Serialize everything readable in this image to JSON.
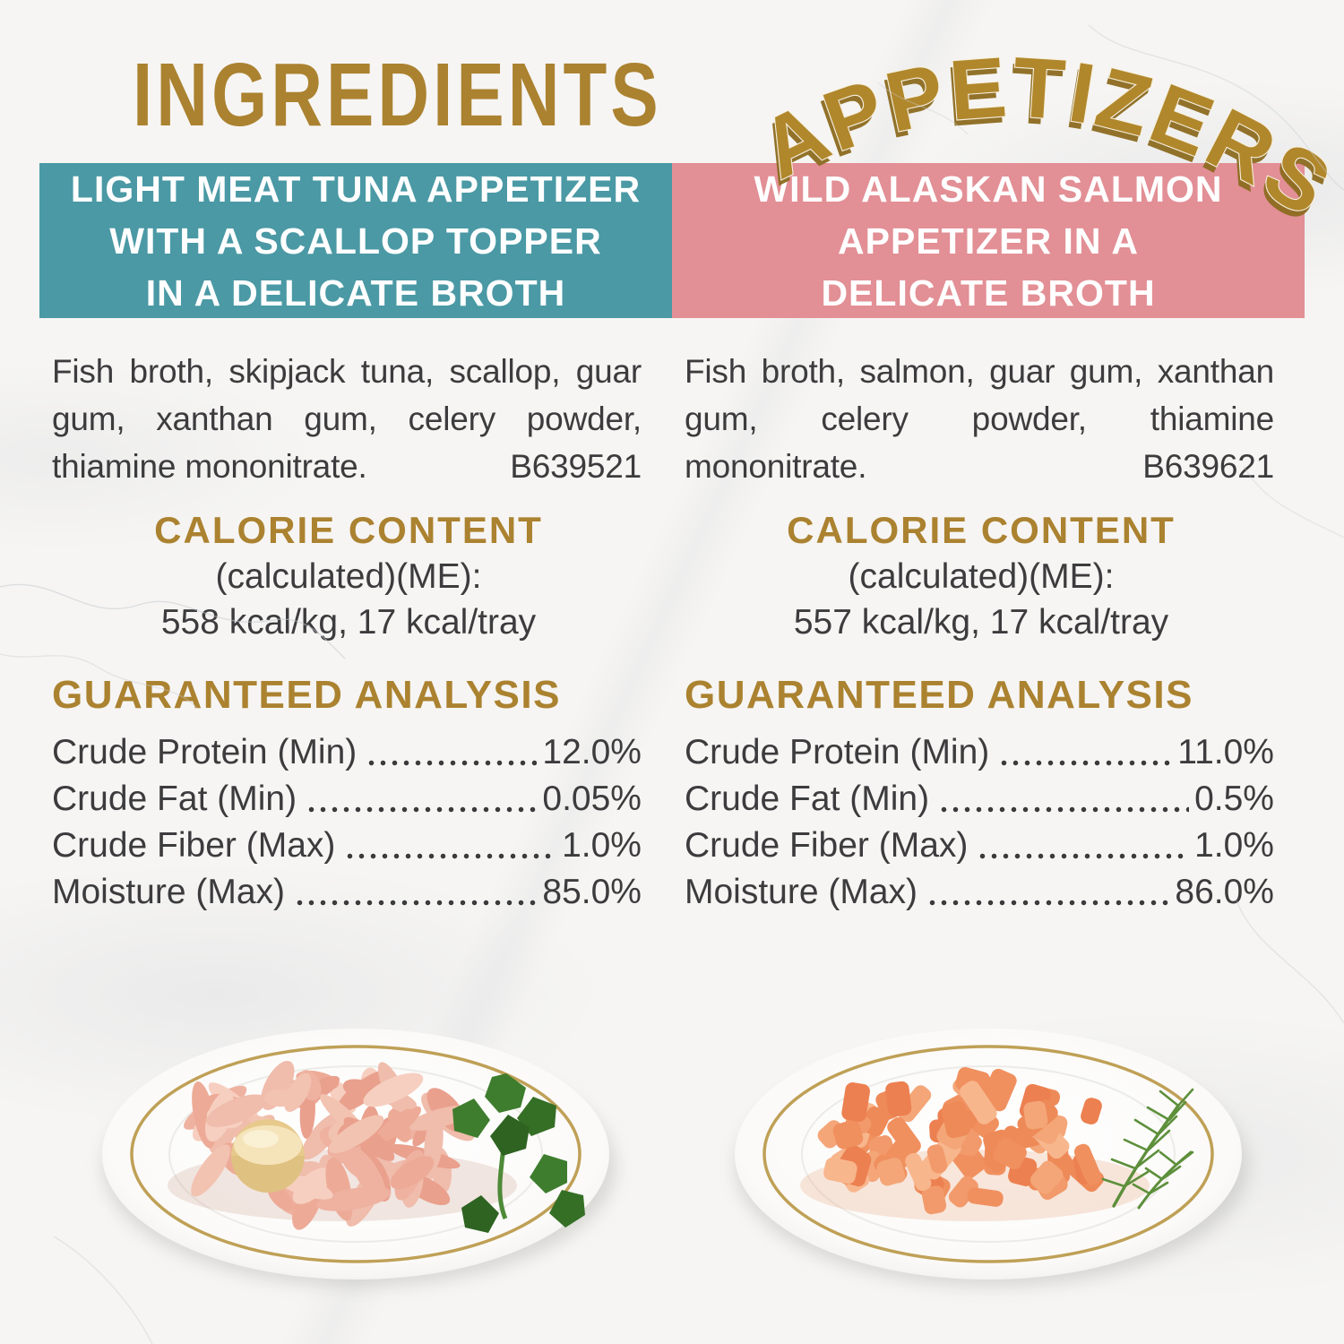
{
  "page": {
    "title": "INGREDIENTS",
    "script_title": "APPETIZERS"
  },
  "colors": {
    "gold": "#ab8230",
    "teal_header": "#4a99a5",
    "pink_header": "#e28f95",
    "body_text": "#3c3c3e",
    "plate_rim_gold": "#bfa056",
    "tuna_meat": "#efb2a1",
    "salmon_meat": "#f0905f",
    "scallop": "#eed8a6",
    "parsley_green": "#3e7d2e",
    "dill_green": "#5d8f3b"
  },
  "products": [
    {
      "header": {
        "lines": [
          "LIGHT MEAT TUNA APPETIZER",
          "WITH A SCALLOP TOPPER",
          "IN A DELICATE BROTH"
        ]
      },
      "ingredients": {
        "lines": [
          "Fish broth, skipjack tuna, scallop, guar",
          "gum, xanthan gum, celery powder,"
        ],
        "last_line": "thiamine mononitrate.",
        "batch_code": "B639521"
      },
      "calorie": {
        "heading": "CALORIE CONTENT",
        "line1": "(calculated)(ME):",
        "line2": "558 kcal/kg, 17 kcal/tray"
      },
      "analysis": {
        "heading": "GUARANTEED ANALYSIS",
        "rows": [
          {
            "label": "Crude Protein (Min)",
            "value": "12.0%"
          },
          {
            "label": "Crude Fat (Min)",
            "value": "0.05%"
          },
          {
            "label": "Crude Fiber (Max)",
            "value": "1.0%"
          },
          {
            "label": "Moisture (Max)",
            "value": "85.0%"
          }
        ]
      }
    },
    {
      "header": {
        "lines": [
          "WILD ALASKAN SALMON",
          "APPETIZER IN A",
          "DELICATE BROTH"
        ]
      },
      "ingredients": {
        "lines": [
          "Fish broth, salmon, guar gum, xanthan",
          "gum, celery powder, thiamine"
        ],
        "last_line": "mononitrate.",
        "batch_code": "B639621"
      },
      "calorie": {
        "heading": "CALORIE CONTENT",
        "line1": "(calculated)(ME):",
        "line2": "557 kcal/kg, 17 kcal/tray"
      },
      "analysis": {
        "heading": "GUARANTEED ANALYSIS",
        "rows": [
          {
            "label": "Crude Protein (Min)",
            "value": "11.0%"
          },
          {
            "label": "Crude Fat (Min)",
            "value": "0.5%"
          },
          {
            "label": "Crude Fiber (Max)",
            "value": "1.0%"
          },
          {
            "label": "Moisture (Max)",
            "value": "86.0%"
          }
        ]
      }
    }
  ]
}
